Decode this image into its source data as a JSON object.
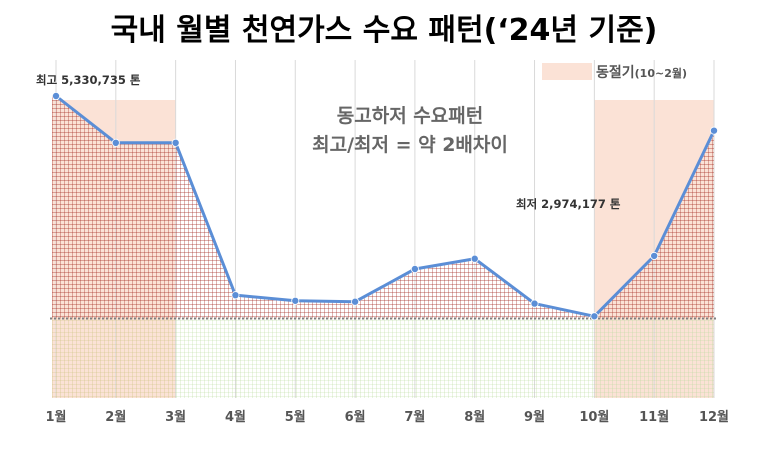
{
  "chart_data": {
    "type": "line",
    "title": "국내 월별 천연가스 수요 패턴(‘24년 기준)",
    "categories": [
      "1월",
      "2월",
      "3월",
      "4월",
      "5월",
      "6월",
      "7월",
      "8월",
      "9월",
      "10월",
      "11월",
      "12월"
    ],
    "values": [
      5330735,
      4830000,
      4830000,
      3200000,
      3140000,
      3130000,
      3480000,
      3590000,
      3110000,
      2974177,
      3620000,
      4960000
    ],
    "baseline_value": 2950000,
    "ylim": [
      2100000,
      5330735
    ],
    "grid": false,
    "legend": {
      "position": "top-right",
      "label": "동절기",
      "sub_label": "(10~2월)"
    },
    "winter_periods": [
      [
        "1월",
        "3월"
      ],
      [
        "10월",
        "12월"
      ]
    ],
    "annotations": {
      "max_label": "최고 5,330,735 톤",
      "min_label": "최저 2,974,177 톤",
      "note_line1": "동고하저 수요패턴",
      "note_line2": "최고/최저 = 약 2배차이"
    },
    "colors": {
      "line": "#5b8ed6",
      "winter_fill": "#fbe2d6",
      "above_hatch": "#a32a22",
      "below_hatch_green": "#b7d99a",
      "below_hatch_olive": "#c9c079",
      "baseline": "#808080"
    }
  }
}
